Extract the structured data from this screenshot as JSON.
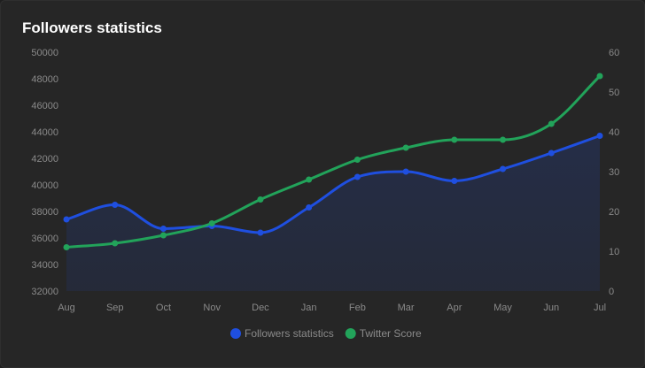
{
  "header": {
    "title": "Followers statistics"
  },
  "chart_data": {
    "type": "line",
    "categories": [
      "Aug",
      "Sep",
      "Oct",
      "Nov",
      "Dec",
      "Jan",
      "Feb",
      "Mar",
      "Apr",
      "May",
      "Jun",
      "Jul"
    ],
    "series": [
      {
        "name": "Followers statistics",
        "axis": "left",
        "color": "#1f4fe0",
        "area": true,
        "values": [
          37400,
          38500,
          36700,
          36900,
          36400,
          38300,
          40600,
          41000,
          40300,
          41200,
          42400,
          43700
        ]
      },
      {
        "name": "Twitter Score",
        "axis": "right",
        "color": "#22a35a",
        "area": false,
        "values": [
          11,
          12,
          14,
          17,
          23,
          28,
          33,
          36,
          38,
          38,
          42,
          54
        ]
      }
    ],
    "y_left": {
      "min": 32000,
      "max": 50000,
      "step": 2000
    },
    "y_right": {
      "min": 0,
      "max": 60,
      "step": 10
    },
    "grid": false,
    "legend_position": "bottom"
  }
}
